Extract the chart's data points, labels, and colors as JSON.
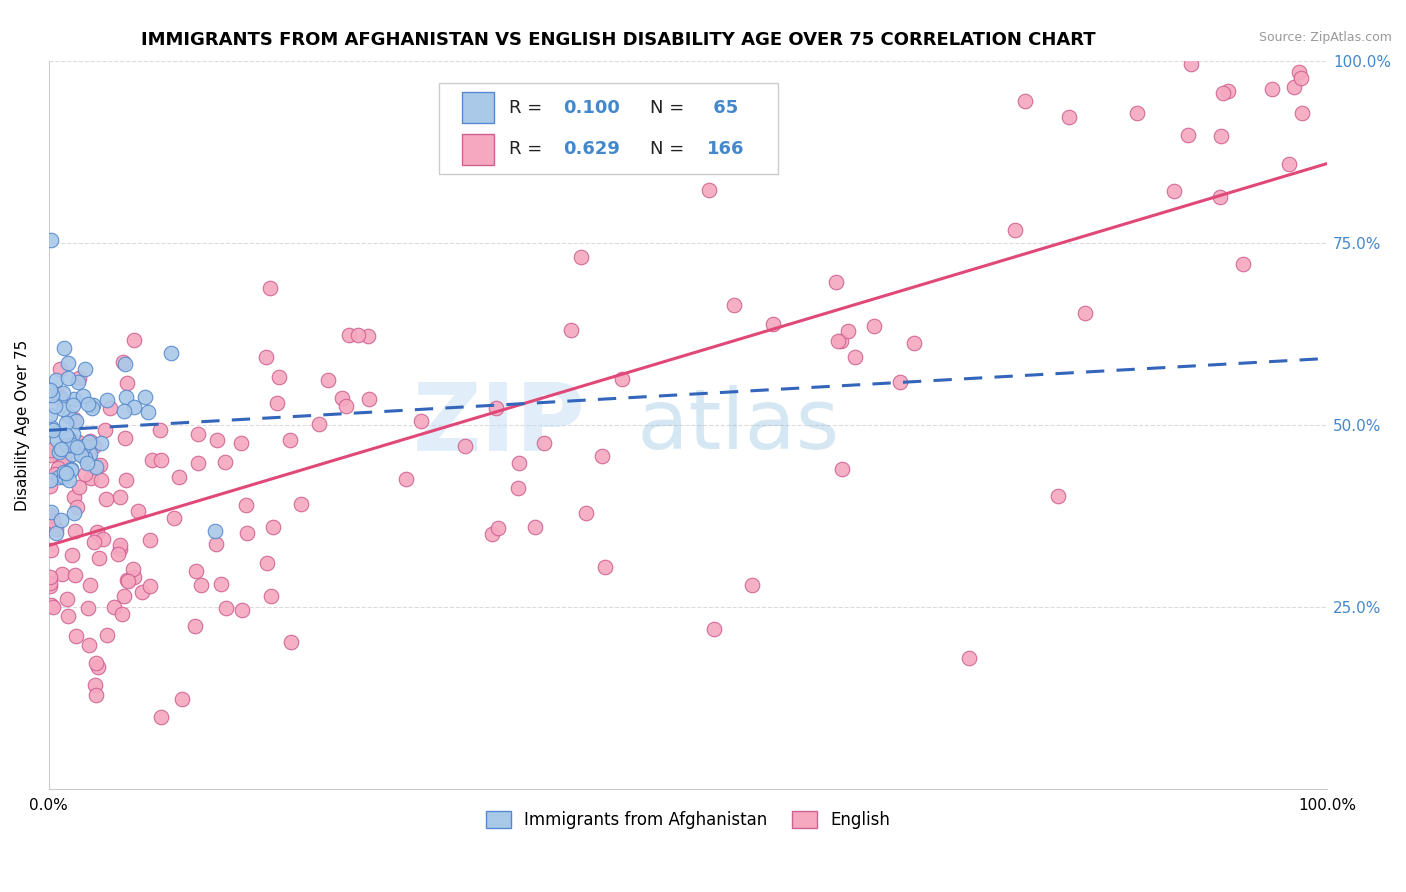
{
  "title": "IMMIGRANTS FROM AFGHANISTAN VS ENGLISH DISABILITY AGE OVER 75 CORRELATION CHART",
  "source": "Source: ZipAtlas.com",
  "ylabel": "Disability Age Over 75",
  "series1_label": "Immigrants from Afghanistan",
  "series2_label": "English",
  "series1_R": "0.100",
  "series1_N": "65",
  "series2_R": "0.629",
  "series2_N": "166",
  "series1_color": "#aac8e8",
  "series2_color": "#f5a8c0",
  "series1_line_color": "#3366bb",
  "series2_line_color": "#e04878",
  "series1_edge_color": "#5588cc",
  "series2_edge_color": "#d06090",
  "background_color": "#ffffff",
  "grid_color": "#cccccc",
  "title_fontsize": 13,
  "axis_label_fontsize": 11,
  "tick_fontsize": 11,
  "right_tick_color": "#4488cc"
}
